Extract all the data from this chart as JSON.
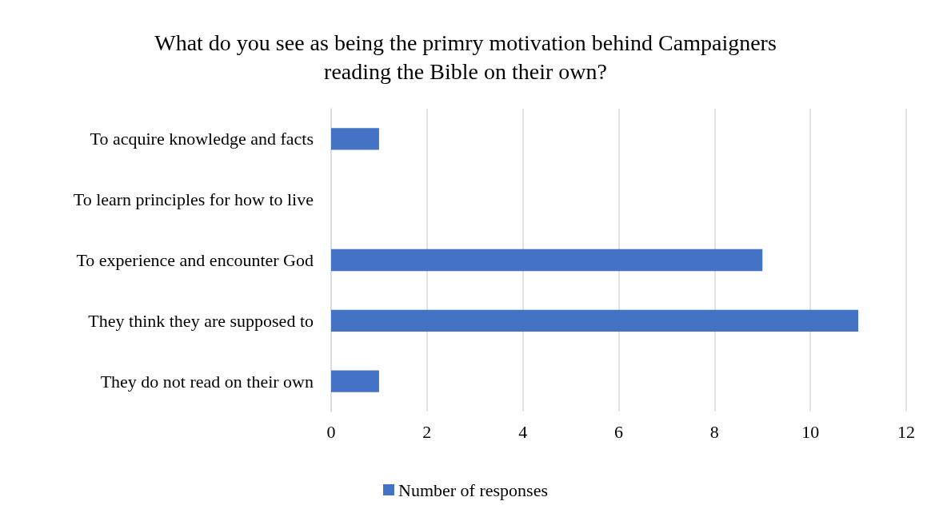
{
  "chart_data": {
    "type": "bar",
    "orientation": "horizontal",
    "title": "What do you see as being the primry motivation behind Campaigners\nreading the Bible on their own?",
    "categories": [
      "To acquire knowledge and facts",
      "To learn principles for how to live",
      "To experience and encounter God",
      "They think they are supposed to",
      "They do not read on their own"
    ],
    "series": [
      {
        "name": "Number of responses",
        "color": "#4472c4",
        "values": [
          1,
          0,
          9,
          11,
          1
        ]
      }
    ],
    "xlim": [
      0,
      12
    ],
    "xticks": [
      0,
      2,
      4,
      6,
      8,
      10,
      12
    ],
    "grid": "x",
    "legend": "bottom"
  }
}
